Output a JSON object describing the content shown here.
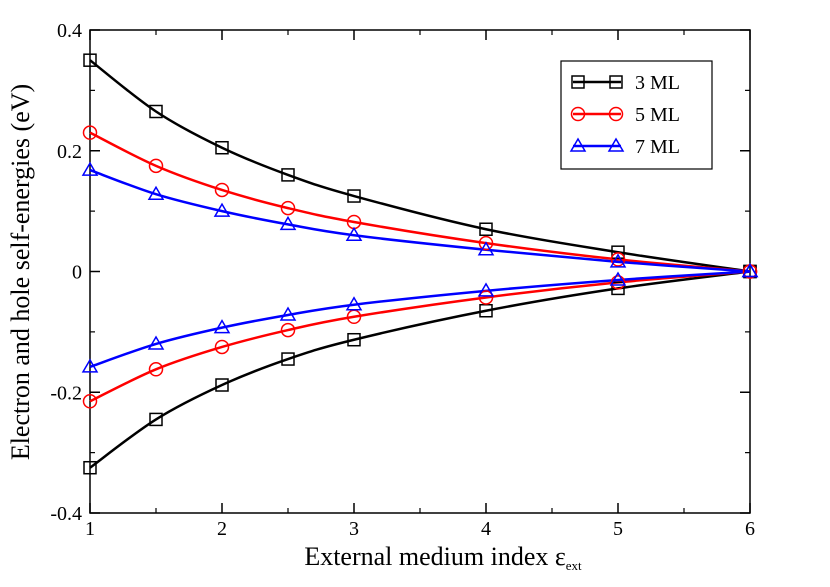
{
  "chart_data": {
    "type": "line",
    "xlabel": "External medium index ε",
    "xlabel_subscript": "ext",
    "ylabel": "Electron and hole self-energies (eV)",
    "xlim": [
      1,
      6
    ],
    "ylim": [
      -0.4,
      0.4
    ],
    "x_ticks": [
      1,
      2,
      3,
      4,
      5,
      6
    ],
    "x_tick_labels": [
      "1",
      "2",
      "3",
      "4",
      "5",
      "6"
    ],
    "y_ticks": [
      -0.4,
      -0.2,
      0,
      0.2,
      0.4
    ],
    "y_tick_labels": [
      "-0.4",
      "-0.2",
      "0",
      "0.2",
      "0.4"
    ],
    "legend_position": "top-right",
    "x": [
      1,
      1.5,
      2,
      2.5,
      3,
      4,
      5,
      6
    ],
    "series": [
      {
        "name": "3 ML",
        "color": "#000000",
        "marker": "square",
        "electron": [
          0.35,
          0.265,
          0.205,
          0.16,
          0.125,
          0.07,
          0.032,
          0
        ],
        "hole": [
          -0.325,
          -0.245,
          -0.188,
          -0.145,
          -0.113,
          -0.065,
          -0.028,
          0
        ]
      },
      {
        "name": "5 ML",
        "color": "#ff0000",
        "marker": "circle",
        "electron": [
          0.23,
          0.175,
          0.135,
          0.105,
          0.082,
          0.047,
          0.02,
          0
        ],
        "hole": [
          -0.215,
          -0.162,
          -0.125,
          -0.097,
          -0.075,
          -0.043,
          -0.018,
          0
        ]
      },
      {
        "name": "7 ML",
        "color": "#0000ff",
        "marker": "triangle",
        "electron": [
          0.168,
          0.128,
          0.1,
          0.078,
          0.06,
          0.036,
          0.016,
          0
        ],
        "hole": [
          -0.158,
          -0.12,
          -0.093,
          -0.072,
          -0.055,
          -0.032,
          -0.014,
          0
        ]
      }
    ]
  }
}
